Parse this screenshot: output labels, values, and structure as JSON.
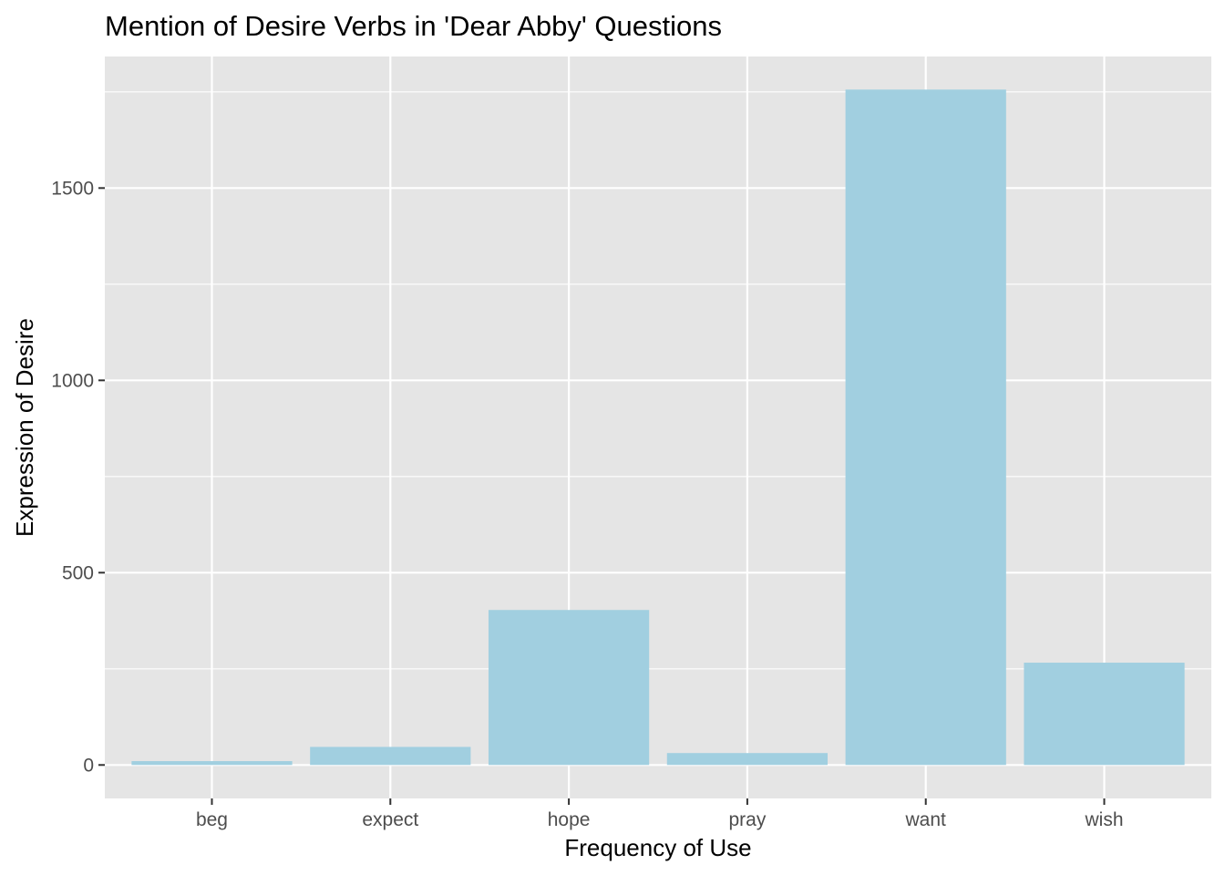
{
  "chart_data": {
    "type": "bar",
    "title": "Mention of Desire Verbs in 'Dear Abby' Questions",
    "xlabel": "Frequency of Use",
    "ylabel": "Expression of Desire",
    "categories": [
      "beg",
      "expect",
      "hope",
      "pray",
      "want",
      "wish"
    ],
    "values": [
      10,
      47,
      403,
      31,
      1756,
      266
    ],
    "ylim": [
      -87,
      1842
    ],
    "yticks": [
      0,
      500,
      1000,
      1500
    ],
    "ytick_labels": [
      "0",
      "500",
      "1000",
      "1500"
    ],
    "grid": true,
    "legend": "none",
    "colors": {
      "bar": "#a1cfe0",
      "panel": "#e5e5e5",
      "grid": "#ffffff",
      "tick_text": "#4d4d4d",
      "tick_mark": "#333333"
    }
  }
}
